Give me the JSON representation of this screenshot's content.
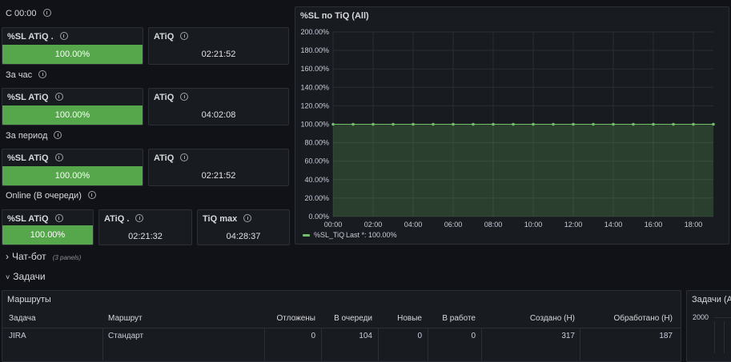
{
  "sections": [
    {
      "title": "С 00:00",
      "panels": [
        {
          "title": "%SL ATiQ .",
          "value": "100.00%",
          "color": "#56a64b"
        },
        {
          "title": "ATiQ",
          "value": "02:21:52"
        }
      ]
    },
    {
      "title": "За час",
      "panels": [
        {
          "title": "%SL ATiQ",
          "value": "100.00%",
          "color": "#56a64b"
        },
        {
          "title": "ATiQ",
          "value": "04:02:08"
        }
      ]
    },
    {
      "title": "За период",
      "panels": [
        {
          "title": "%SL ATiQ",
          "value": "100.00%",
          "color": "#56a64b"
        },
        {
          "title": "ATiQ",
          "value": "02:21:52"
        }
      ]
    },
    {
      "title": "Online (В очереди)",
      "panels": [
        {
          "title": "%SL ATiQ",
          "value": "100.00%",
          "color": "#56a64b"
        },
        {
          "title": "ATiQ .",
          "value": "02:21:32"
        },
        {
          "title": "TiQ max",
          "value": "04:28:37"
        }
      ]
    }
  ],
  "chart_data": {
    "type": "area",
    "title": "%SL по TiQ (All)",
    "x": [
      0,
      1,
      2,
      3,
      4,
      5,
      6,
      7,
      8,
      9,
      10,
      11,
      12,
      13,
      14,
      15,
      16,
      17,
      18,
      19
    ],
    "series": [
      {
        "name": "%SL_TiQ",
        "color": "#73bf69",
        "values": [
          100,
          100,
          100,
          100,
          100,
          100,
          100,
          100,
          100,
          100,
          100,
          100,
          100,
          100,
          100,
          100,
          100,
          100,
          100,
          100
        ]
      }
    ],
    "legend_stat": "Last *: 100.00%",
    "xlim": [
      0,
      19
    ],
    "xticks": [
      {
        "value": 0,
        "label": "00:00"
      },
      {
        "value": 2,
        "label": "02:00"
      },
      {
        "value": 4,
        "label": "04:00"
      },
      {
        "value": 6,
        "label": "06:00"
      },
      {
        "value": 8,
        "label": "08:00"
      },
      {
        "value": 10,
        "label": "10:00"
      },
      {
        "value": 12,
        "label": "12:00"
      },
      {
        "value": 14,
        "label": "14:00"
      },
      {
        "value": 16,
        "label": "16:00"
      },
      {
        "value": 18,
        "label": "18:00"
      }
    ],
    "ylim": [
      0,
      200
    ],
    "yticks": [
      {
        "value": 0,
        "label": "0.00%"
      },
      {
        "value": 20,
        "label": "20.00%"
      },
      {
        "value": 40,
        "label": "40.00%"
      },
      {
        "value": 60,
        "label": "60.00%"
      },
      {
        "value": 80,
        "label": "80.00%"
      },
      {
        "value": 100,
        "label": "100.00%"
      },
      {
        "value": 120,
        "label": "120.00%"
      },
      {
        "value": 140,
        "label": "140.00%"
      },
      {
        "value": 160,
        "label": "160.00%"
      },
      {
        "value": 180,
        "label": "180.00%"
      },
      {
        "value": 200,
        "label": "200.00%"
      }
    ],
    "grid": true
  },
  "rows": [
    {
      "title": "Чат-бот",
      "note": "(3 panels)"
    },
    {
      "title": "Задачи"
    }
  ],
  "table": {
    "title": "Маршруты",
    "columns": [
      "Задача",
      "Маршрут",
      "Отложены",
      "В очереди",
      "Новые",
      "В работе",
      "Создано (Н)",
      "Обработано (Н)"
    ],
    "rows": [
      [
        "JIRA",
        "Стандарт",
        "0",
        "104",
        "0",
        "0",
        "317",
        "187"
      ]
    ]
  },
  "side_panel": {
    "title": "Задачи (All)",
    "ytick": "2000"
  }
}
